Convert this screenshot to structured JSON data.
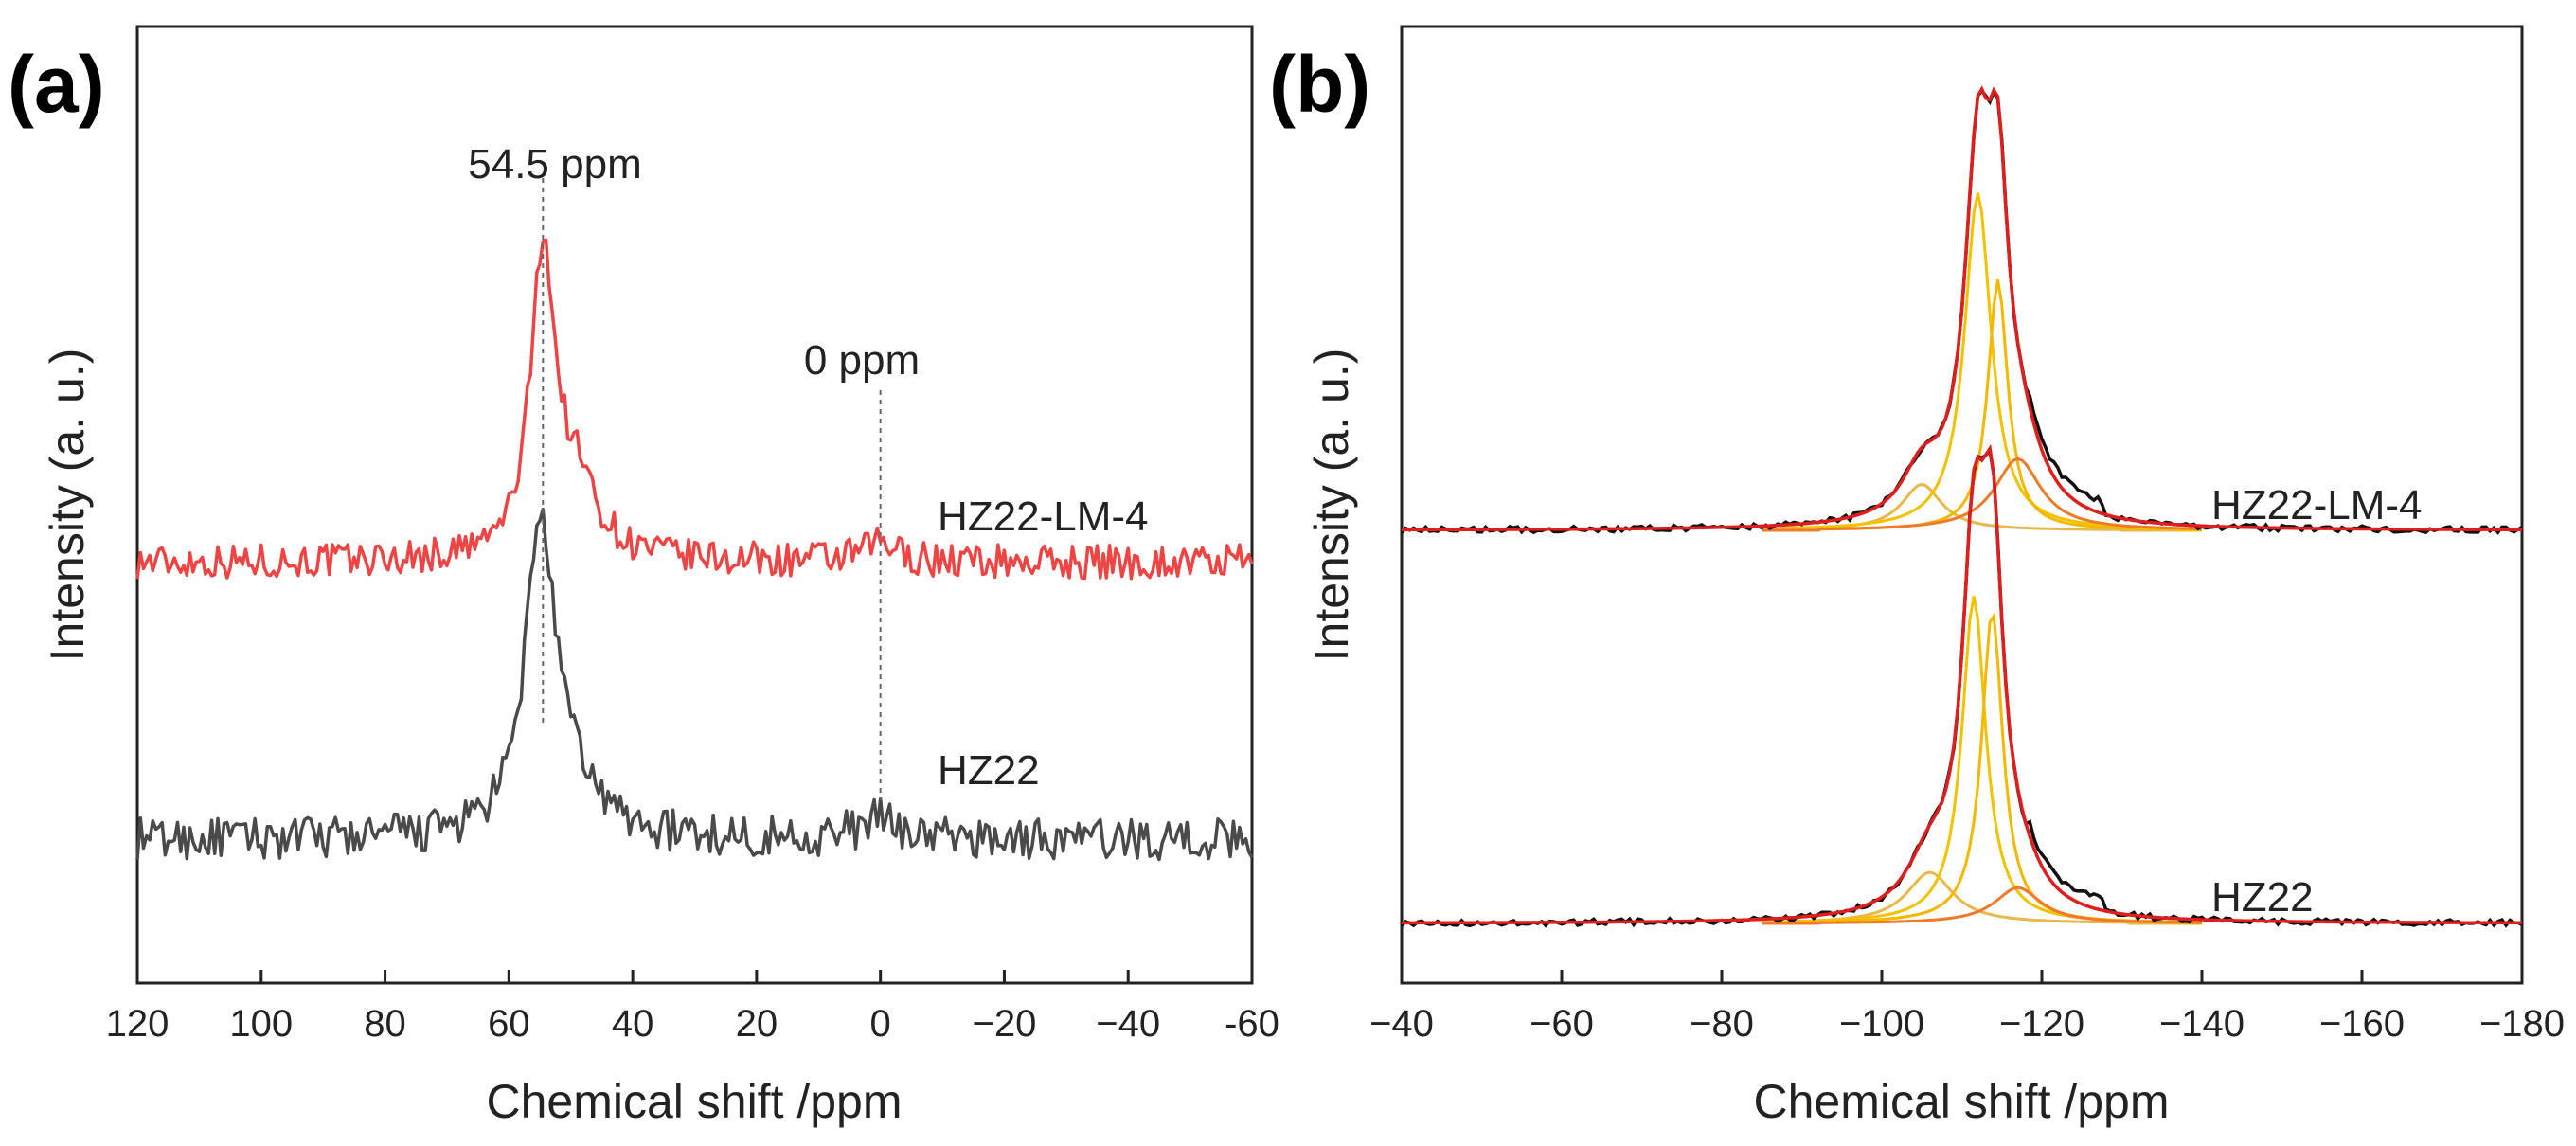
{
  "chart_data": [
    {
      "type": "line",
      "panel_label": "(a)",
      "xlabel": "Chemical shift /ppm",
      "ylabel": "Intensity (a. u.)",
      "xlim": [
        120,
        -60
      ],
      "ylim": [
        0,
        1
      ],
      "xticks": [
        120,
        100,
        80,
        60,
        40,
        20,
        0,
        -20,
        -40,
        -60
      ],
      "xtick_labels": [
        "120",
        "100",
        "80",
        "60",
        "40",
        "20",
        "0",
        "−20",
        "−40",
        "-60"
      ],
      "yticks_shown": false,
      "annotations": [
        {
          "text": "54.5 ppm",
          "x": 54.5,
          "guide_line": true
        },
        {
          "text": "0 ppm",
          "x": 0,
          "guide_line": true
        }
      ],
      "series": [
        {
          "name": "HZ22-LM-4",
          "color": "#ef4444",
          "baseline": 0.44,
          "peaks": [
            {
              "center": 54.5,
              "height": 0.32,
              "width": 2.4
            },
            {
              "center": 49,
              "height": 0.07,
              "width": 4
            },
            {
              "center": 0,
              "height": 0.02,
              "width": 3
            }
          ],
          "noise": 0.018
        },
        {
          "name": "HZ22",
          "color": "#4a4a4a",
          "baseline": 0.15,
          "peaks": [
            {
              "center": 55,
              "height": 0.32,
              "width": 2.8
            },
            {
              "center": 50,
              "height": 0.05,
              "width": 5
            },
            {
              "center": 0,
              "height": 0.02,
              "width": 4
            }
          ],
          "noise": 0.022
        }
      ]
    },
    {
      "type": "line",
      "panel_label": "(b)",
      "xlabel": "Chemical shift /ppm",
      "ylabel": "Intensity (a. u.)",
      "xlim": [
        -40,
        -180
      ],
      "ylim": [
        0,
        1
      ],
      "xticks": [
        -40,
        -60,
        -80,
        -100,
        -120,
        -140,
        -160,
        -180
      ],
      "xtick_labels": [
        "−40",
        "−60",
        "−80",
        "−100",
        "−120",
        "−140",
        "−160",
        "−180"
      ],
      "yticks_shown": false,
      "groups": [
        {
          "name": "HZ22-LM-4",
          "baseline": 0.535,
          "components": [
            {
              "center": -105,
              "height": 0.045,
              "width": 3.0,
              "color": "#e8b84a"
            },
            {
              "center": -112,
              "height": 0.33,
              "width": 2.0,
              "color": "#f2c200"
            },
            {
              "center": -114.5,
              "height": 0.245,
              "width": 1.5,
              "color": "#f5b800"
            },
            {
              "center": -117,
              "height": 0.07,
              "width": 3.5,
              "color": "#ef7a2a"
            }
          ],
          "experimental_color": "#111111",
          "fit_color": "#e01e1e",
          "noise": 0.003
        },
        {
          "name": "HZ22",
          "baseline": 0.0,
          "components": [
            {
              "center": -106,
              "height": 0.05,
              "width": 3.5,
              "color": "#e8b84a"
            },
            {
              "center": -111.5,
              "height": 0.32,
              "width": 1.8,
              "color": "#f2c200"
            },
            {
              "center": -113.8,
              "height": 0.305,
              "width": 1.6,
              "color": "#f5b800"
            },
            {
              "center": -117,
              "height": 0.035,
              "width": 3.5,
              "color": "#ef7a2a"
            }
          ],
          "experimental_color": "#111111",
          "fit_color": "#e01e1e",
          "noise": 0.003
        }
      ]
    }
  ]
}
